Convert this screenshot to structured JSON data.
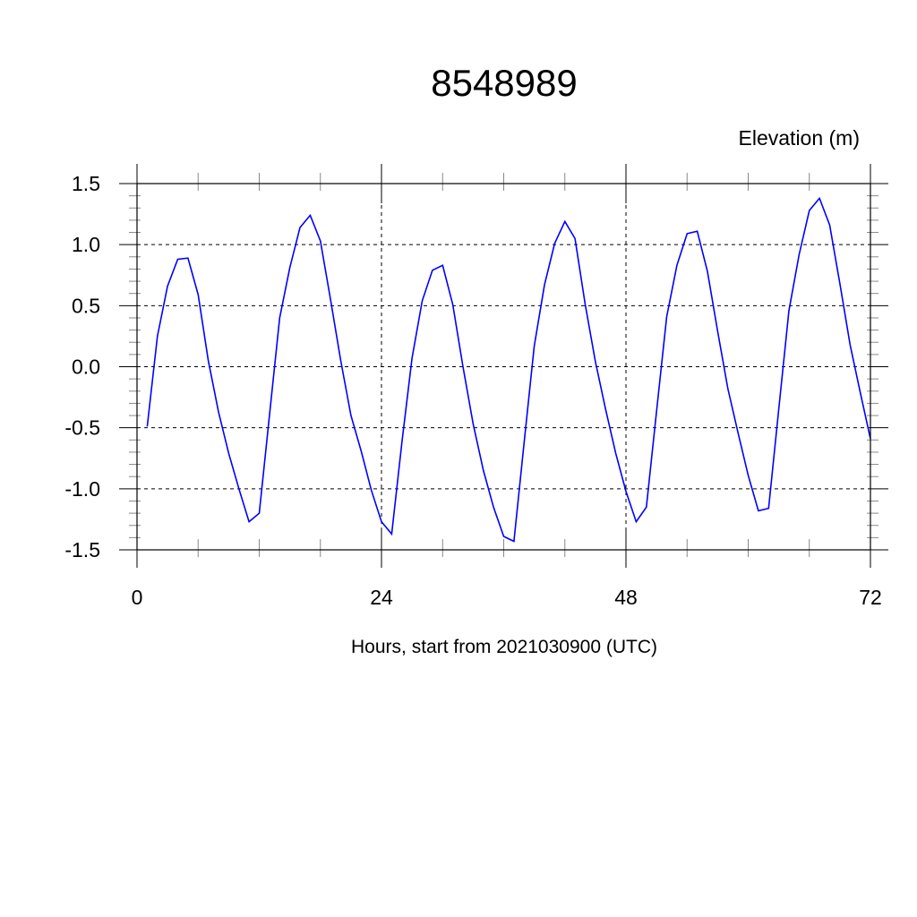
{
  "chart_data": {
    "type": "line",
    "title": "8548989",
    "ylabel": "Elevation (m)",
    "xlabel": "Hours, start from 2021030900 (UTC)",
    "xlim": [
      0,
      72
    ],
    "ylim": [
      -1.5,
      1.5
    ],
    "xticks": [
      0,
      24,
      48,
      72
    ],
    "xtick_labels": [
      "0",
      "24",
      "48",
      "72"
    ],
    "yticks": [
      1.5,
      1.0,
      0.5,
      0.0,
      -0.5,
      -1.0,
      -1.5
    ],
    "ytick_labels": [
      "1.5",
      "1.0",
      "0.5",
      "0.0",
      "-0.5",
      "-1.0",
      "-1.5"
    ],
    "grid": true,
    "line_color": "#0000ff",
    "series": [
      {
        "x": [
          1,
          2,
          3,
          4,
          5,
          6,
          7,
          8,
          9,
          10,
          11,
          12,
          13,
          14,
          15,
          16,
          17,
          18,
          19,
          20,
          21,
          22,
          23,
          24,
          25,
          26,
          27,
          28,
          29,
          30,
          31,
          32,
          33,
          34,
          35,
          36,
          37,
          38,
          39,
          40,
          41,
          42,
          43,
          44,
          45,
          46,
          47,
          48,
          49,
          50,
          51,
          52,
          53,
          54,
          55,
          56,
          57,
          58,
          59,
          60,
          61,
          62,
          63,
          64,
          65,
          66,
          67,
          68,
          69,
          70,
          71,
          72
        ],
        "y": [
          -0.49,
          0.25,
          0.66,
          0.88,
          0.89,
          0.59,
          0.05,
          -0.37,
          -0.71,
          -1.0,
          -1.27,
          -1.2,
          -0.4,
          0.4,
          0.81,
          1.14,
          1.24,
          1.03,
          0.55,
          0.05,
          -0.4,
          -0.69,
          -1.01,
          -1.27,
          -1.37,
          -0.62,
          0.07,
          0.54,
          0.79,
          0.83,
          0.51,
          0.0,
          -0.47,
          -0.85,
          -1.15,
          -1.39,
          -1.43,
          -0.62,
          0.17,
          0.67,
          1.01,
          1.19,
          1.05,
          0.51,
          0.04,
          -0.35,
          -0.71,
          -1.02,
          -1.27,
          -1.15,
          -0.37,
          0.41,
          0.83,
          1.09,
          1.11,
          0.78,
          0.29,
          -0.18,
          -0.54,
          -0.89,
          -1.18,
          -1.16,
          -0.35,
          0.46,
          0.92,
          1.28,
          1.38,
          1.16,
          0.68,
          0.18,
          -0.21,
          -0.59
        ]
      }
    ]
  }
}
